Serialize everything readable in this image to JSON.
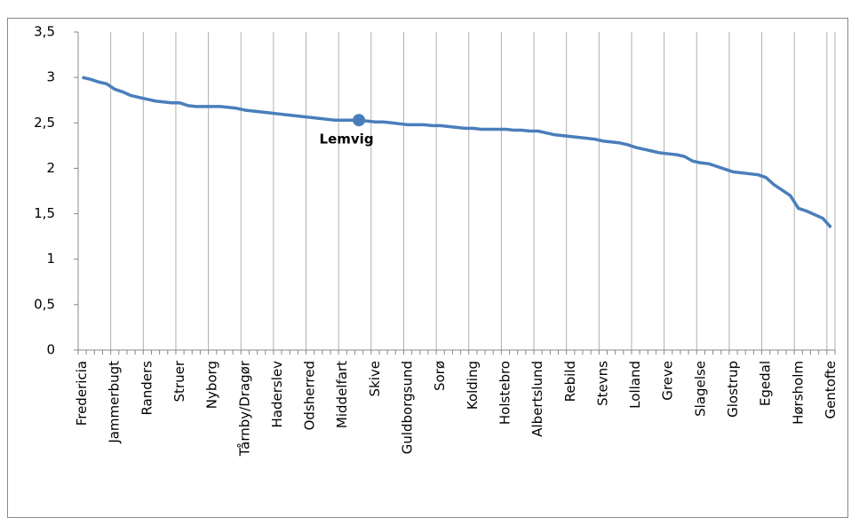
{
  "chart_data": {
    "type": "line",
    "categories": [
      "Fredericia",
      null,
      null,
      null,
      "Jammerbugt",
      null,
      null,
      null,
      "Randers",
      null,
      null,
      null,
      "Struer",
      null,
      null,
      null,
      "Nyborg",
      null,
      null,
      null,
      "Tårnby/Dragør",
      null,
      null,
      null,
      "Haderslev",
      null,
      null,
      null,
      "Odsherred",
      null,
      null,
      null,
      "Middelfart",
      null,
      null,
      null,
      "Skive",
      null,
      null,
      null,
      "Guldborgsund",
      null,
      null,
      null,
      "Sorø",
      null,
      null,
      null,
      "Kolding",
      null,
      null,
      null,
      "Holstebro",
      null,
      null,
      null,
      "Albertslund",
      null,
      null,
      null,
      "Rebild",
      null,
      null,
      null,
      "Stevns",
      null,
      null,
      null,
      "Lolland",
      null,
      null,
      null,
      "Greve",
      null,
      null,
      null,
      "Slagelse",
      null,
      null,
      null,
      "Glostrup",
      null,
      null,
      null,
      "Egedal",
      null,
      null,
      null,
      "Hørsholm",
      null,
      null,
      null,
      "Gentofte"
    ],
    "values": [
      3.0,
      2.98,
      2.95,
      2.93,
      2.87,
      2.84,
      2.8,
      2.78,
      2.76,
      2.74,
      2.73,
      2.72,
      2.72,
      2.69,
      2.68,
      2.68,
      2.68,
      2.68,
      2.67,
      2.66,
      2.64,
      2.63,
      2.62,
      2.61,
      2.6,
      2.59,
      2.58,
      2.57,
      2.56,
      2.55,
      2.54,
      2.53,
      2.53,
      2.53,
      2.53,
      2.52,
      2.51,
      2.51,
      2.5,
      2.49,
      2.48,
      2.48,
      2.48,
      2.47,
      2.47,
      2.46,
      2.45,
      2.44,
      2.44,
      2.43,
      2.43,
      2.43,
      2.43,
      2.42,
      2.42,
      2.41,
      2.41,
      2.39,
      2.37,
      2.36,
      2.35,
      2.34,
      2.33,
      2.32,
      2.3,
      2.29,
      2.28,
      2.26,
      2.23,
      2.21,
      2.19,
      2.17,
      2.16,
      2.15,
      2.13,
      2.08,
      2.06,
      2.05,
      2.02,
      1.99,
      1.96,
      1.95,
      1.94,
      1.93,
      1.9,
      1.82,
      1.76,
      1.7,
      1.56,
      1.53,
      1.49,
      1.45,
      1.35
    ],
    "color": "#4a7ebb",
    "ylim": [
      0,
      3.5
    ],
    "yticks": [
      0,
      {
        "value": 0.5,
        "label": "0,5"
      },
      1,
      {
        "value": 1.5,
        "label": "1,5"
      },
      2,
      {
        "value": 2.5,
        "label": "2,5"
      },
      3,
      {
        "value": 3.5,
        "label": "3,5"
      }
    ],
    "grid": true,
    "annotations": [
      {
        "text": "Lemvig",
        "x": 34
      }
    ]
  }
}
